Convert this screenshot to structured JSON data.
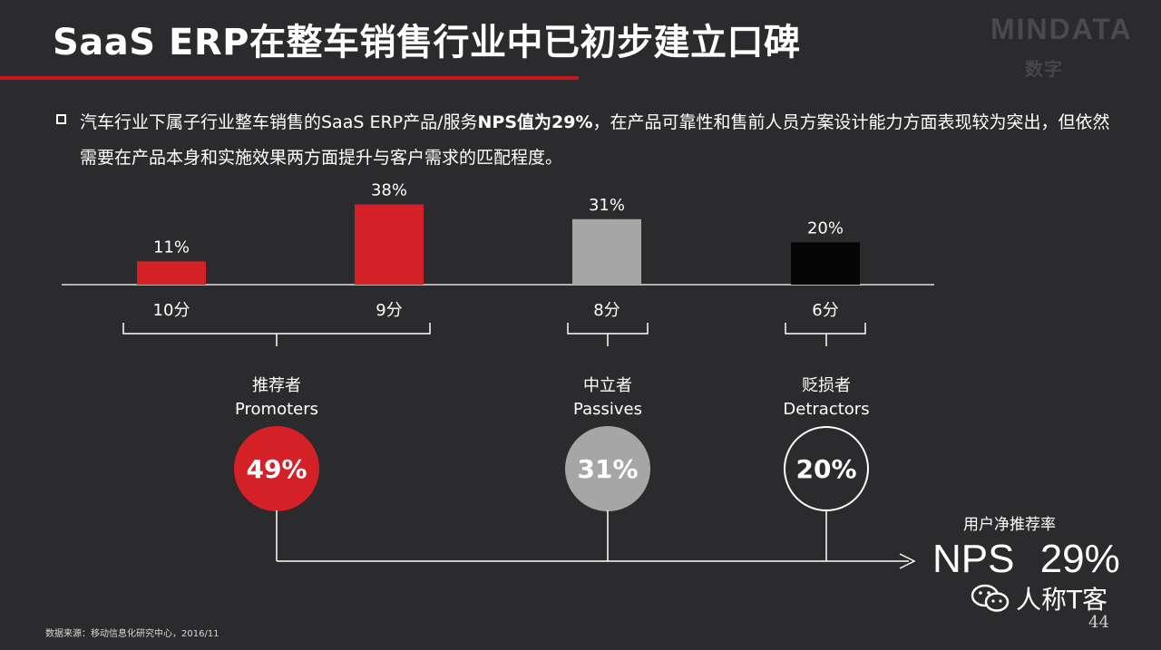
{
  "header": {
    "title": "SaaS ERP在整车销售行业中已初步建立口碑"
  },
  "logo": {
    "main_text": "MINDATA",
    "sub_text": "数字"
  },
  "summary": {
    "part1": "汽车行业下属子行业整车销售的SaaS ERP产品/服务",
    "highlight": "NPS值为29%",
    "part2": "，在产品可靠性和售前人员方案设计能力方面表现较为突出，但依然需要在产品本身和实施效果两方面提升与客户需求的匹配程度。"
  },
  "chart_data": {
    "type": "bar",
    "categories": [
      "10分",
      "9分",
      "8分",
      "6分"
    ],
    "values": [
      11,
      38,
      31,
      20
    ],
    "value_labels": [
      "11%",
      "38%",
      "31%",
      "20%"
    ],
    "colors": [
      "#d42027",
      "#d42027",
      "#a6a6a6",
      "#050505"
    ],
    "ylim": [
      0,
      40
    ],
    "groups": [
      {
        "name_cn": "推荐者",
        "name_en": "Promoters",
        "value": 49,
        "label": "49%",
        "fill": "#d42027",
        "stroke": "#d42027",
        "members": [
          0,
          1
        ]
      },
      {
        "name_cn": "中立者",
        "name_en": "Passives",
        "value": 31,
        "label": "31%",
        "fill": "#a6a6a6",
        "stroke": "#a6a6a6",
        "members": [
          2
        ]
      },
      {
        "name_cn": "贬损者",
        "name_en": "Detractors",
        "value": 20,
        "label": "20%",
        "fill": "none",
        "stroke": "#ffffff",
        "members": [
          3
        ]
      }
    ],
    "result": {
      "label": "用户净推荐率",
      "value": "NPS  29%"
    }
  },
  "footer": {
    "source": "数据来源：移动信息化研究中心，2016/11",
    "watermark": "人称T客",
    "watermark_icon": "wechat-icon",
    "page_number": "44"
  }
}
